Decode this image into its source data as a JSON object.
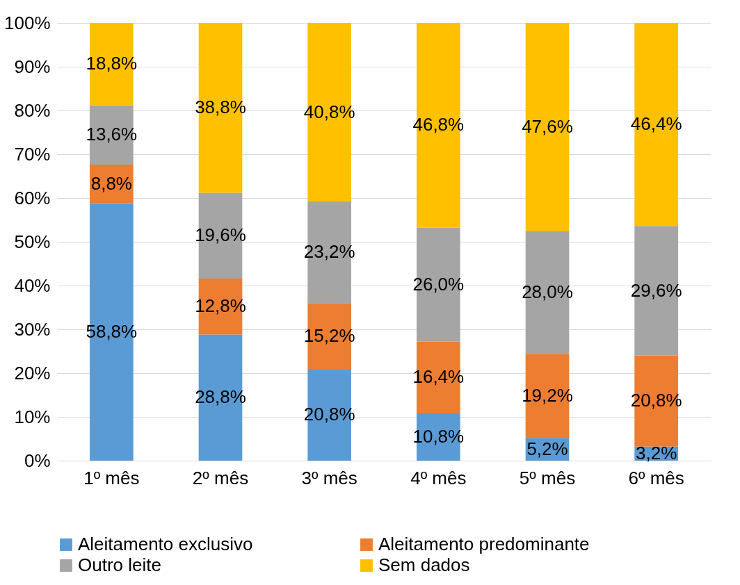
{
  "chart_data": {
    "type": "bar",
    "stacked": true,
    "categories": [
      "1º mês",
      "2º mês",
      "3º mês",
      "4º mês",
      "5º mês",
      "6º mês"
    ],
    "series": [
      {
        "name": "Aleitamento exclusivo",
        "color": "#5b9bd5",
        "values": [
          58.8,
          28.8,
          20.8,
          10.8,
          5.2,
          3.2
        ],
        "value_labels": [
          "58,8%",
          "28,8%",
          "20,8%",
          "10,8%",
          "5,2%",
          "3,2%"
        ]
      },
      {
        "name": "Aleitamento predominante",
        "color": "#ed7d31",
        "values": [
          8.8,
          12.8,
          15.2,
          16.4,
          19.2,
          20.8
        ],
        "value_labels": [
          "8,8%",
          "12,8%",
          "15,2%",
          "16,4%",
          "19,2%",
          "20,8%"
        ]
      },
      {
        "name": "Outro leite",
        "color": "#a5a5a5",
        "values": [
          13.6,
          19.6,
          23.2,
          26.0,
          28.0,
          29.6
        ],
        "value_labels": [
          "13,6%",
          "19,6%",
          "23,2%",
          "26,0%",
          "28,0%",
          "29,6%"
        ]
      },
      {
        "name": "Sem dados",
        "color": "#ffc000",
        "values": [
          18.8,
          38.8,
          40.8,
          46.8,
          47.6,
          46.4
        ],
        "value_labels": [
          "18,8%",
          "38,8%",
          "40,8%",
          "46,8%",
          "47,6%",
          "46,4%"
        ]
      }
    ],
    "ylim": [
      0,
      100
    ],
    "yticks": [
      {
        "value": 0,
        "label": "0%"
      },
      {
        "value": 10,
        "label": "10%"
      },
      {
        "value": 20,
        "label": "20%"
      },
      {
        "value": 30,
        "label": "30%"
      },
      {
        "value": 40,
        "label": "40%"
      },
      {
        "value": 50,
        "label": "50%"
      },
      {
        "value": 60,
        "label": "60%"
      },
      {
        "value": 70,
        "label": "70%"
      },
      {
        "value": 80,
        "label": "80%"
      },
      {
        "value": 90,
        "label": "90%"
      },
      {
        "value": 100,
        "label": "100%"
      }
    ],
    "grid": "y",
    "legend": "bottom"
  }
}
